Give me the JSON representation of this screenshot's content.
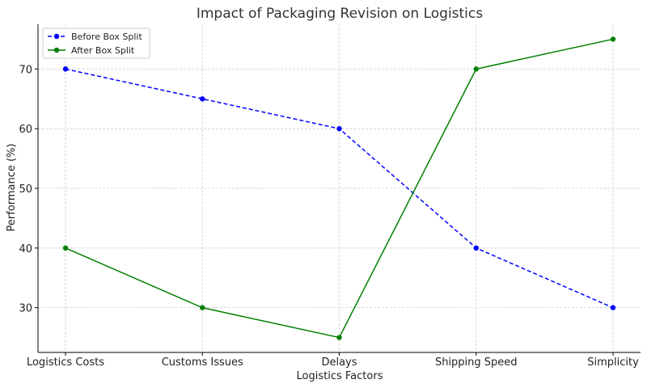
{
  "chart_data": {
    "type": "line",
    "title": "Impact of Packaging Revision on Logistics",
    "xlabel": "Logistics Factors",
    "ylabel": "Performance (%)",
    "categories": [
      "Logistics Costs",
      "Customs Issues",
      "Delays",
      "Shipping Speed",
      "Simplicity"
    ],
    "ylim": [
      22.5,
      77.5
    ],
    "yticks": [
      30,
      40,
      50,
      60,
      70
    ],
    "grid": true,
    "legend_position": "top-left",
    "series": [
      {
        "name": "Before Box Split",
        "values": [
          70,
          65,
          60,
          40,
          30
        ],
        "color": "#0000ff",
        "line_style": "dashed",
        "marker": "circle"
      },
      {
        "name": "After Box Split",
        "values": [
          40,
          30,
          25,
          70,
          75
        ],
        "color": "#008000",
        "line_style": "solid",
        "marker": "circle"
      }
    ]
  }
}
